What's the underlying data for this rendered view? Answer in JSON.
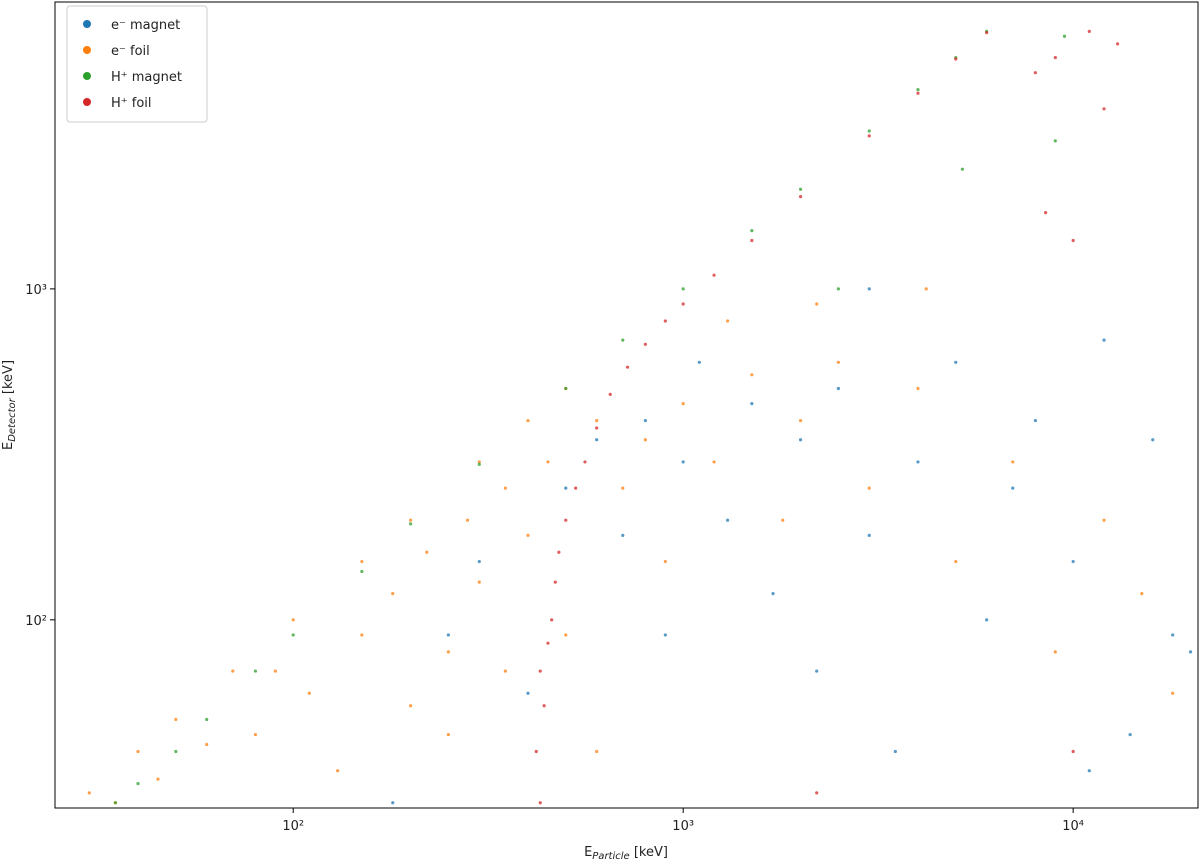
{
  "chart_data": {
    "type": "scatter",
    "xlabel": "E",
    "xlabel_sub": "Particle",
    "xlabel_unit": " [keV]",
    "ylabel": "E",
    "ylabel_sub": "Detector",
    "ylabel_unit": " [keV]",
    "xscale": "log",
    "yscale": "log",
    "xlim": [
      24.5,
      20900
    ],
    "ylim": [
      27,
      7360
    ],
    "xticks": [
      {
        "value": 100,
        "label": "10²"
      },
      {
        "value": 1000,
        "label": "10³"
      },
      {
        "value": 10000,
        "label": "10⁴"
      }
    ],
    "yticks": [
      {
        "value": 100,
        "label": "10²"
      },
      {
        "value": 1000,
        "label": "10³"
      }
    ],
    "legend": "upper left",
    "series": [
      {
        "name": "e⁻ magnet",
        "color": "#1f77b4",
        "x": [
          180,
          250,
          300,
          400,
          500,
          600,
          700,
          800,
          900,
          1000,
          1100,
          1300,
          1500,
          1700,
          2000,
          2200,
          2500,
          3000,
          3500,
          4000,
          5000,
          6000,
          7000,
          8000,
          10000,
          12000,
          14000,
          16000,
          18000,
          11000,
          3000,
          20000
        ],
        "values": [
          28,
          90,
          150,
          60,
          250,
          350,
          180,
          400,
          90,
          300,
          600,
          200,
          450,
          120,
          350,
          70,
          500,
          180,
          40,
          300,
          600,
          100,
          250,
          400,
          150,
          700,
          45,
          350,
          90,
          35,
          1000,
          80
        ]
      },
      {
        "name": "e⁻ foil",
        "color": "#ff7f0e",
        "x": [
          30,
          40,
          50,
          70,
          100,
          150,
          200,
          300,
          400,
          500,
          35,
          45,
          60,
          80,
          90,
          110,
          130,
          150,
          180,
          200,
          220,
          250,
          280,
          300,
          350,
          400,
          450,
          500,
          600,
          700,
          800,
          900,
          1000,
          1200,
          1500,
          1800,
          2000,
          2500,
          3000,
          4000,
          5000,
          7000,
          9000,
          12000,
          15000,
          18000,
          600,
          250,
          350,
          1300,
          2200,
          4200
        ],
        "values": [
          30,
          40,
          50,
          70,
          100,
          150,
          200,
          300,
          400,
          500,
          28,
          33,
          42,
          45,
          70,
          60,
          35,
          90,
          120,
          55,
          160,
          80,
          200,
          130,
          250,
          180,
          300,
          90,
          400,
          250,
          350,
          150,
          450,
          300,
          550,
          200,
          400,
          600,
          250,
          500,
          150,
          300,
          80,
          200,
          120,
          60,
          40,
          45,
          70,
          800,
          900,
          1000
        ]
      },
      {
        "name": "H⁺ magnet",
        "color": "#2ca02c",
        "x": [
          35,
          40,
          50,
          60,
          80,
          100,
          150,
          200,
          300,
          500,
          700,
          1000,
          1500,
          2000,
          3000,
          4000,
          5000,
          6000,
          5200,
          9500,
          2500,
          9000
        ],
        "values": [
          28,
          32,
          40,
          50,
          70,
          90,
          140,
          195,
          295,
          500,
          700,
          1000,
          1500,
          2000,
          3000,
          4000,
          5000,
          6000,
          2300,
          5800,
          1000,
          2800
        ]
      },
      {
        "name": "H⁺ foil",
        "color": "#d62728",
        "x": [
          430,
          420,
          440,
          430,
          450,
          460,
          470,
          480,
          500,
          530,
          560,
          600,
          650,
          720,
          800,
          900,
          1000,
          1200,
          1500,
          2000,
          3000,
          4000,
          5000,
          6000,
          8000,
          9000,
          12000,
          13000,
          11000,
          8500,
          10000,
          2200,
          10000
        ],
        "values": [
          28,
          40,
          55,
          70,
          85,
          100,
          130,
          160,
          200,
          250,
          300,
          380,
          480,
          580,
          680,
          800,
          900,
          1100,
          1400,
          1900,
          2900,
          3900,
          4950,
          5950,
          4500,
          5000,
          3500,
          5500,
          6000,
          1700,
          1400,
          30,
          40
        ]
      }
    ]
  }
}
